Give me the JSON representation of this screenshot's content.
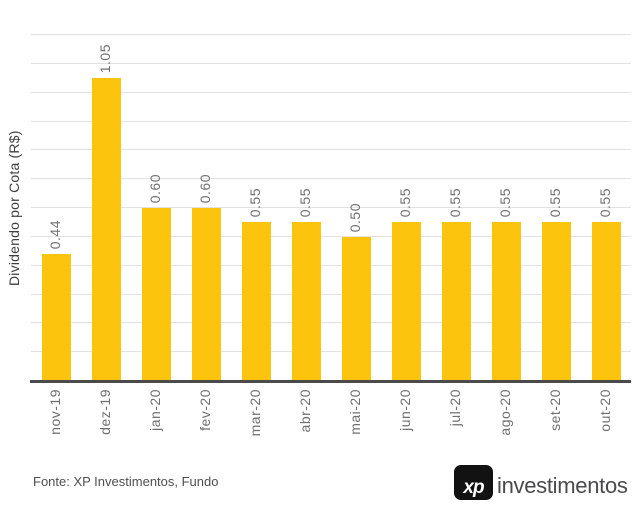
{
  "chart_data": {
    "type": "bar",
    "categories": [
      "nov-19",
      "dez-19",
      "jan-20",
      "fev-20",
      "mar-20",
      "abr-20",
      "mai-20",
      "jun-20",
      "jul-20",
      "ago-20",
      "set-20",
      "out-20"
    ],
    "values": [
      0.44,
      1.05,
      0.6,
      0.6,
      0.55,
      0.55,
      0.5,
      0.55,
      0.55,
      0.55,
      0.55,
      0.55
    ],
    "value_labels": [
      "0.44",
      "1.05",
      "0.60",
      "0.60",
      "0.55",
      "0.55",
      "0.50",
      "0.55",
      "0.55",
      "0.55",
      "0.55",
      "0.55"
    ],
    "title": "",
    "xlabel": "",
    "ylabel": "Dividendo por Cota (R$)",
    "ylim": [
      0,
      1.2
    ],
    "grid": true,
    "gridline_step": 0.1,
    "legend": "none",
    "bar_color": "#FDC40D",
    "value_label_rotation_deg": -90,
    "x_label_rotation_deg": -90
  },
  "footer": {
    "source_text": "Fonte: XP Investimentos, Fundo",
    "logo_mark": "xp",
    "logo_text": "investimentos"
  },
  "colors": {
    "background": "#FFFFFF",
    "bar": "#FDC40D",
    "gridline": "#E2E2E2",
    "axis_line": "#4A4A4A",
    "tick_label": "#6F6F6F",
    "axis_title": "#3F3F3F",
    "source_text": "#4F4F4F",
    "logo_box": "#121212",
    "logo_text": "#4A4A4C"
  }
}
